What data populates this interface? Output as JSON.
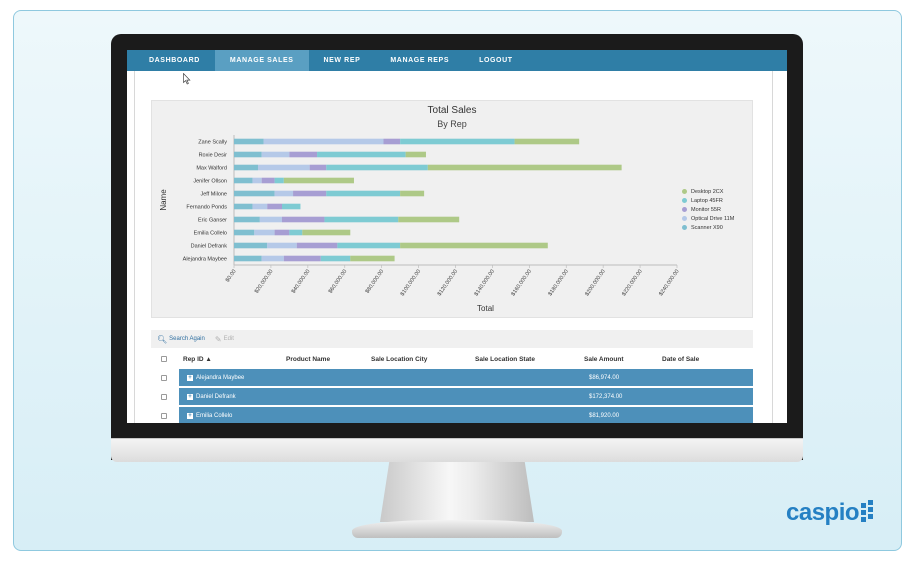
{
  "nav": {
    "items": [
      {
        "label": "DASHBOARD",
        "active": false
      },
      {
        "label": "MANAGE SALES",
        "active": true
      },
      {
        "label": "NEW REP",
        "active": false
      },
      {
        "label": "MANAGE REPS",
        "active": false
      },
      {
        "label": "LOGOUT",
        "active": false
      }
    ]
  },
  "chart_data": {
    "type": "bar",
    "orientation": "horizontal",
    "stacked": true,
    "title": "Total Sales",
    "subtitle": "By Rep",
    "xlabel": "Total",
    "ylabel": "Name",
    "xlim": [
      0,
      240000
    ],
    "x_ticks": [
      "$0.00",
      "$20,000.00",
      "$40,000.00",
      "$60,000.00",
      "$80,000.00",
      "$100,000.00",
      "$120,000.00",
      "$140,000.00",
      "$160,000.00",
      "$180,000.00",
      "$200,000.00",
      "$220,000.00",
      "$240,000.00"
    ],
    "categories": [
      "Zane Scally",
      "Roxie Desir",
      "Max Walford",
      "Jenifer Ollson",
      "Jeff Milone",
      "Fernando Ponds",
      "Eric Ganser",
      "Emilia Collelo",
      "Daniel Defrank",
      "Alejandra Maybee"
    ],
    "series": [
      {
        "name": "Scanner X90",
        "color": "#7fbfd0",
        "values": [
          16000,
          15000,
          13000,
          10000,
          22000,
          10000,
          14000,
          11000,
          18000,
          15000
        ]
      },
      {
        "name": "Optical Drive 11M",
        "color": "#b5c9e8",
        "values": [
          65000,
          15000,
          28000,
          5000,
          10000,
          8000,
          12000,
          11000,
          16000,
          12000
        ]
      },
      {
        "name": "Monitor 55R",
        "color": "#a79ed3",
        "values": [
          9000,
          15000,
          9000,
          7000,
          18000,
          8000,
          23000,
          8000,
          22000,
          20000
        ]
      },
      {
        "name": "Laptop 45FR",
        "color": "#7ecbd3",
        "values": [
          62000,
          48000,
          55000,
          5000,
          40000,
          10000,
          40000,
          7000,
          34000,
          16000
        ]
      },
      {
        "name": "Desktop 2CX",
        "color": "#aec987",
        "values": [
          35000,
          11000,
          105000,
          38000,
          13000,
          0,
          33000,
          26000,
          80000,
          24000
        ]
      }
    ],
    "legend_position": "right",
    "legend_order": [
      "Desktop 2CX",
      "Laptop 45FR",
      "Monitor 55R",
      "Optical Drive 11M",
      "Scanner X90"
    ]
  },
  "toolbar": {
    "search_again": "Search Again",
    "edit": "Edit"
  },
  "table": {
    "headers": [
      "Rep ID",
      "Product Name",
      "Sale Location City",
      "Sale Location State",
      "Sale Amount",
      "Date of Sale"
    ],
    "sort_indicator": "▲",
    "rows": [
      {
        "rep": "Alejandra Maybee",
        "amount": "$86,974.00"
      },
      {
        "rep": "Daniel Defrank",
        "amount": "$172,374.00"
      },
      {
        "rep": "Emilia Collelo",
        "amount": "$81,920.00"
      }
    ]
  },
  "brand": {
    "logo_text": "caspio"
  }
}
